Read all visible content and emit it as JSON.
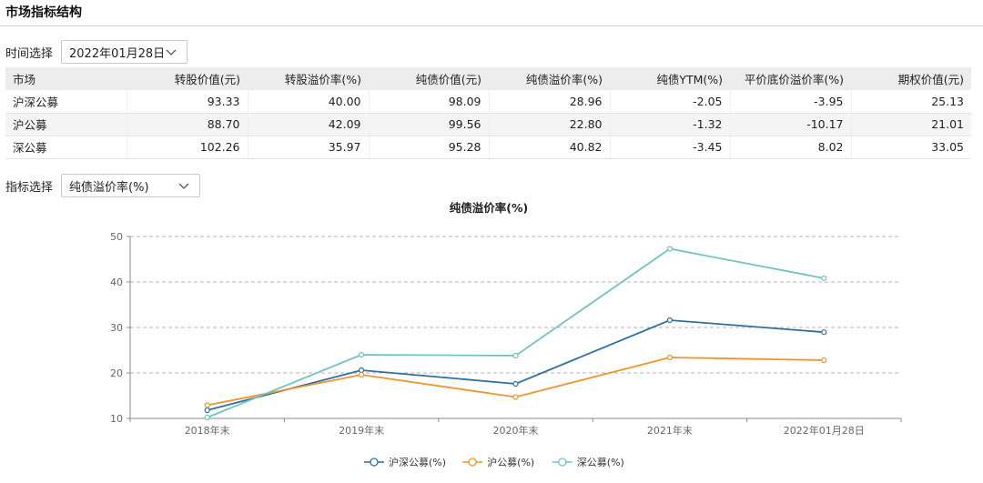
{
  "header": {
    "title": "市场指标结构"
  },
  "time_selector": {
    "label": "时间选择",
    "value": "2022年01月28日"
  },
  "indicator_selector": {
    "label": "指标选择",
    "value": "纯债溢价率(%)"
  },
  "table": {
    "columns": [
      "市场",
      "转股价值(元)",
      "转股溢价率(%)",
      "纯债价值(元)",
      "纯债溢价率(%)",
      "纯债YTM(%)",
      "平价底价溢价率(%)",
      "期权价值(元)"
    ],
    "rows": [
      [
        "沪深公募",
        "93.33",
        "40.00",
        "98.09",
        "28.96",
        "-2.05",
        "-3.95",
        "25.13"
      ],
      [
        "沪公募",
        "88.70",
        "42.09",
        "99.56",
        "22.80",
        "-1.32",
        "-10.17",
        "21.01"
      ],
      [
        "深公募",
        "102.26",
        "35.97",
        "95.28",
        "40.82",
        "-3.45",
        "8.02",
        "33.05"
      ]
    ]
  },
  "chart_data": {
    "type": "line",
    "title": "纯债溢价率(%)",
    "categories": [
      "2018年末",
      "2019年末",
      "2020年末",
      "2021年末",
      "2022年01月28日"
    ],
    "ylim": [
      10,
      50
    ],
    "yticks": [
      10,
      20,
      30,
      40,
      50
    ],
    "grid": true,
    "legend": "bottom",
    "series": [
      {
        "name": "沪深公募(%)",
        "color": "#2f6f9f",
        "values": [
          11.8,
          20.6,
          17.6,
          31.6,
          28.96
        ]
      },
      {
        "name": "沪公募(%)",
        "color": "#f0932b",
        "values": [
          12.9,
          19.6,
          14.7,
          23.4,
          22.8
        ]
      },
      {
        "name": "深公募(%)",
        "color": "#71c2c3",
        "values": [
          10.2,
          24.0,
          23.8,
          47.3,
          40.82
        ]
      }
    ]
  }
}
